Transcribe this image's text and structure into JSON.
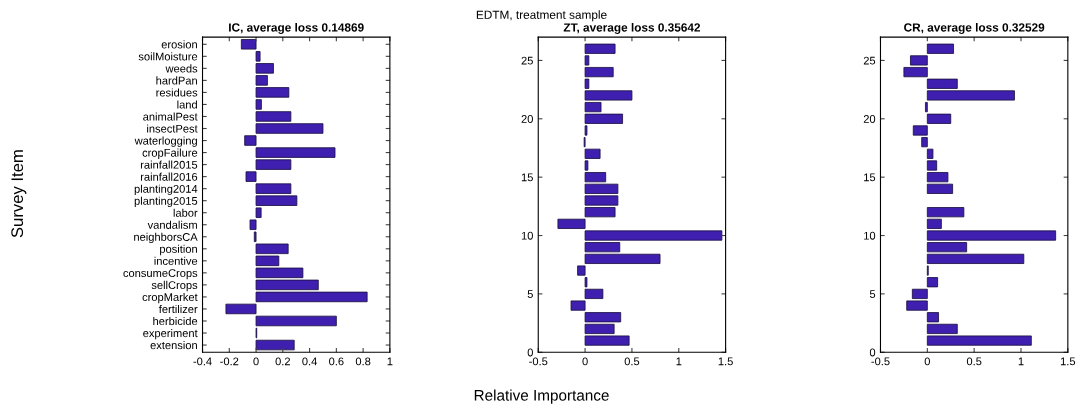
{
  "chart_data": [
    {
      "type": "bar",
      "orientation": "horizontal",
      "title": "IC, average loss 0.14869",
      "ylabel": "Survey Item",
      "annotations": [
        "EDTM, treatment sample"
      ],
      "categories": [
        "erosion",
        "soilMoisture",
        "weeds",
        "hardPan",
        "residues",
        "land",
        "animalPest",
        "insectPest",
        "waterlogging",
        "cropFailure",
        "rainfall2015",
        "rainfall2016",
        "planting2014",
        "planting2015",
        "labor",
        "vandalism",
        "neighborsCA",
        "position",
        "incentive",
        "consumeCrops",
        "sellCrops",
        "cropMarket",
        "fertilizer",
        "herbicide",
        "experiment",
        "extension"
      ],
      "values": [
        -0.11,
        0.03,
        0.13,
        0.085,
        0.245,
        0.04,
        0.26,
        0.5,
        -0.085,
        0.59,
        0.26,
        -0.075,
        0.26,
        0.305,
        0.038,
        -0.045,
        -0.013,
        0.24,
        0.17,
        0.35,
        0.465,
        0.83,
        -0.225,
        0.6,
        0.005,
        0.285
      ],
      "color": "#3f1fb0",
      "xlim": [
        -0.4,
        1
      ],
      "xticks": [
        -0.4,
        -0.2,
        0,
        0.2,
        0.4,
        0.6,
        0.8,
        1
      ],
      "grid": false
    },
    {
      "type": "bar",
      "orientation": "horizontal",
      "title": "ZT, average loss 0.35642",
      "xlabel": "Relative Importance",
      "x": [
        26,
        25,
        24,
        23,
        22,
        21,
        20,
        19,
        18,
        17,
        16,
        15,
        14,
        13,
        12,
        11,
        10,
        9,
        8,
        7,
        6,
        5,
        4,
        3,
        2,
        1
      ],
      "values": [
        0.32,
        0.04,
        0.3,
        0.04,
        0.5,
        0.17,
        0.4,
        0.02,
        -0.01,
        0.16,
        0.03,
        0.22,
        0.35,
        0.35,
        0.32,
        -0.29,
        1.46,
        0.37,
        0.8,
        -0.08,
        0.02,
        0.19,
        -0.15,
        0.38,
        0.31,
        0.47
      ],
      "color": "#3f1fb0",
      "xlim": [
        -0.5,
        1.5
      ],
      "xticks": [
        -0.5,
        0,
        0.5,
        1,
        1.5
      ],
      "ylim": [
        0,
        27
      ],
      "yticks": [
        0,
        5,
        10,
        15,
        20,
        25
      ],
      "grid": false
    },
    {
      "type": "bar",
      "orientation": "horizontal",
      "title": "CR, average loss 0.32529",
      "x": [
        26,
        25,
        24,
        23,
        22,
        21,
        20,
        19,
        18,
        17,
        16,
        15,
        14,
        13,
        12,
        11,
        10,
        9,
        8,
        7,
        6,
        5,
        4,
        3,
        2,
        1
      ],
      "values": [
        0.28,
        -0.18,
        -0.25,
        0.32,
        0.93,
        -0.02,
        0.25,
        -0.15,
        -0.06,
        0.06,
        0.1,
        0.22,
        0.27,
        null,
        0.39,
        0.15,
        1.37,
        0.42,
        1.03,
        0.01,
        0.11,
        -0.16,
        -0.22,
        0.12,
        0.32,
        1.11
      ],
      "color": "#3f1fb0",
      "xlim": [
        -0.5,
        1.5
      ],
      "xticks": [
        -0.5,
        0,
        0.5,
        1,
        1.5
      ],
      "ylim": [
        0,
        27
      ],
      "yticks": [
        0,
        5,
        10,
        15,
        20,
        25
      ],
      "grid": false
    }
  ]
}
